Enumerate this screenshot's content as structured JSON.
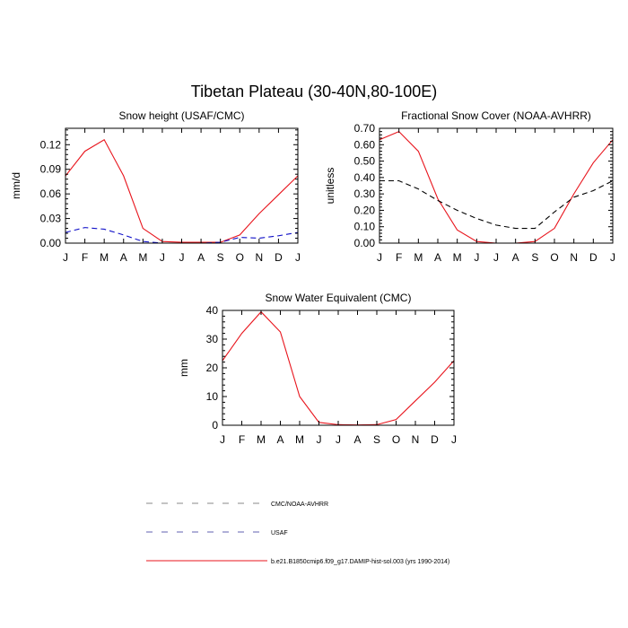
{
  "page_title": "Tibetan Plateau (30-40N,80-100E)",
  "months": [
    "J",
    "F",
    "M",
    "A",
    "M",
    "J",
    "J",
    "A",
    "S",
    "O",
    "N",
    "D",
    "J"
  ],
  "colors": {
    "model": "#e8141c",
    "obs_black": "#000000",
    "obs_blue": "#1010c8"
  },
  "chart_data": [
    {
      "type": "line",
      "title": "Snow height (USAF/CMC)",
      "ylabel": "mm/d",
      "categories": [
        "J",
        "F",
        "M",
        "A",
        "M",
        "J",
        "J",
        "A",
        "S",
        "O",
        "N",
        "D",
        "J"
      ],
      "ylim": [
        0,
        0.14
      ],
      "yticks": [
        0.0,
        0.03,
        0.06,
        0.09,
        0.12
      ],
      "ytick_labels": [
        "0.00",
        "0.03",
        "0.06",
        "0.09",
        "0.12"
      ],
      "series": [
        {
          "style": "red-solid",
          "values": [
            0.082,
            0.112,
            0.126,
            0.082,
            0.018,
            0.002,
            0.001,
            0.001,
            0.001,
            0.01,
            0.036,
            0.059,
            0.082
          ]
        },
        {
          "style": "blue-dashed",
          "values": [
            0.013,
            0.019,
            0.017,
            0.01,
            0.002,
            0.0,
            0.0,
            0.0,
            0.001,
            0.007,
            0.006,
            0.009,
            0.013
          ]
        },
        {
          "style": "black-dashed",
          "values": [
            0.0,
            0.0,
            0.0,
            0.0,
            0.0,
            0.0,
            0.0,
            0.0,
            0.0,
            0.0,
            0.0,
            0.0,
            0.0
          ]
        }
      ]
    },
    {
      "type": "line",
      "title": "Fractional Snow Cover (NOAA-AVHRR)",
      "ylabel": "unitless",
      "categories": [
        "J",
        "F",
        "M",
        "A",
        "M",
        "J",
        "J",
        "A",
        "S",
        "O",
        "N",
        "D",
        "J"
      ],
      "ylim": [
        0,
        0.7
      ],
      "yticks": [
        0.0,
        0.1,
        0.2,
        0.3,
        0.4,
        0.5,
        0.6,
        0.7
      ],
      "ytick_labels": [
        "0.00",
        "0.10",
        "0.20",
        "0.30",
        "0.40",
        "0.50",
        "0.60",
        "0.70"
      ],
      "series": [
        {
          "style": "red-solid",
          "values": [
            0.63,
            0.68,
            0.56,
            0.27,
            0.08,
            0.01,
            0.0,
            0.0,
            0.01,
            0.09,
            0.3,
            0.49,
            0.63
          ]
        },
        {
          "style": "black-dashed",
          "values": [
            0.38,
            0.38,
            0.33,
            0.26,
            0.2,
            0.15,
            0.11,
            0.09,
            0.09,
            0.19,
            0.28,
            0.32,
            0.38
          ]
        }
      ]
    },
    {
      "type": "line",
      "title": "Snow Water Equivalent (CMC)",
      "ylabel": "mm",
      "categories": [
        "J",
        "F",
        "M",
        "A",
        "M",
        "J",
        "J",
        "A",
        "S",
        "O",
        "N",
        "D",
        "J"
      ],
      "ylim": [
        0,
        40
      ],
      "yticks": [
        0,
        10,
        20,
        30,
        40
      ],
      "ytick_labels": [
        "0",
        "10",
        "20",
        "30",
        "40"
      ],
      "series": [
        {
          "style": "red-solid",
          "values": [
            22.5,
            32.0,
            39.5,
            32.5,
            10.0,
            1.0,
            0.2,
            0.1,
            0.2,
            2.0,
            8.5,
            15.0,
            22.5
          ]
        },
        {
          "style": "black-dashed",
          "values": [
            0,
            0,
            0,
            0,
            0,
            0,
            0,
            0,
            0,
            0,
            0,
            0,
            0
          ]
        }
      ]
    }
  ],
  "legend": [
    {
      "style": "gray-dashed",
      "label": "CMC/NOAA-AVHRR"
    },
    {
      "style": "blue-dashed",
      "label": "USAF"
    },
    {
      "style": "red-solid",
      "label": "b.e21.B1850cmip6.f09_g17.DAMIP-hist-sol.003 (yrs 1990-2014)"
    }
  ]
}
